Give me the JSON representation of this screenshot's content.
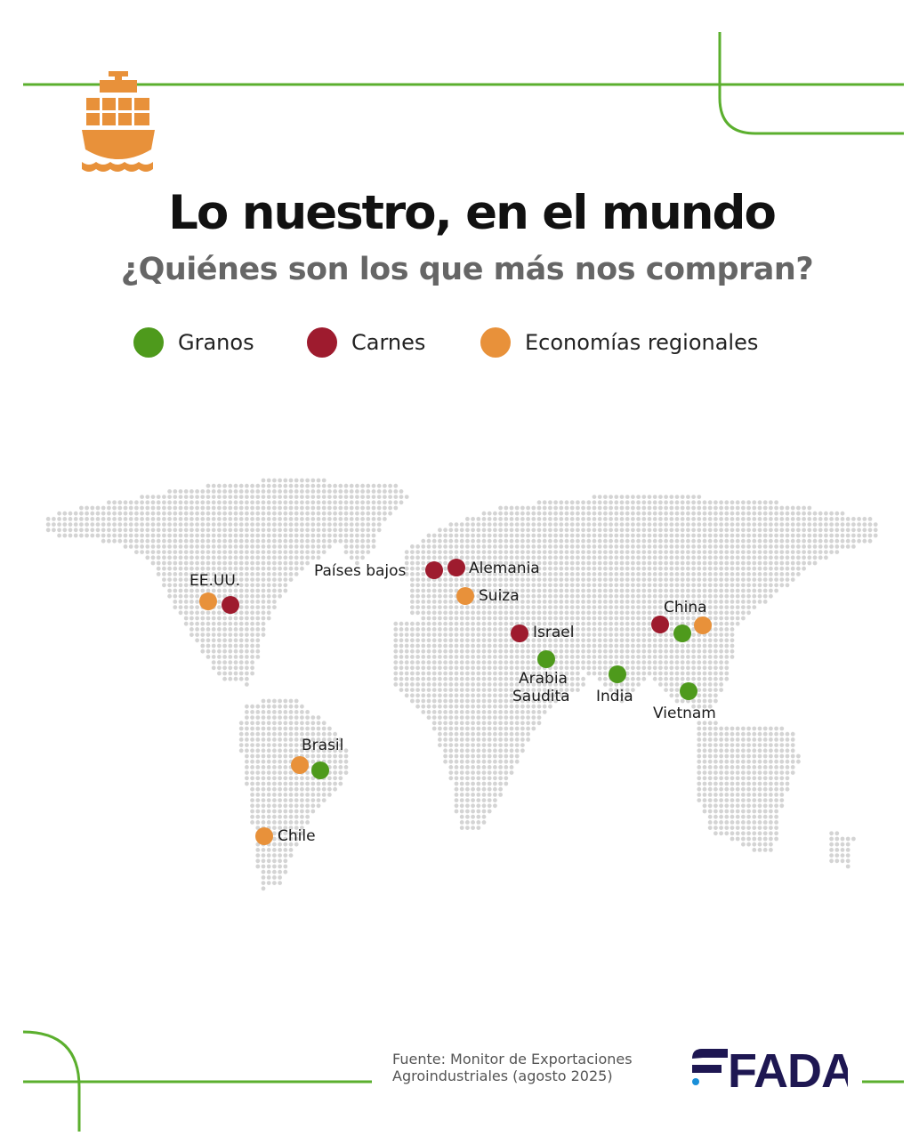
{
  "header": {
    "title": "Lo nuestro, en el mundo",
    "subtitle": "¿Quiénes son los que más nos compran?",
    "icon": "cargo-ship-icon"
  },
  "legend": [
    {
      "label": "Granos",
      "color": "#4E9A1C"
    },
    {
      "label": "Carnes",
      "color": "#9E1B2E"
    },
    {
      "label": "Economías regionales",
      "color": "#E8913A"
    }
  ],
  "map": {
    "base": "dotted-world-map",
    "countries": [
      {
        "name": "EE.UU.",
        "categories": [
          "Economías regionales",
          "Carnes"
        ]
      },
      {
        "name": "Países bajos",
        "categories": [
          "Carnes"
        ]
      },
      {
        "name": "Alemania",
        "categories": [
          "Carnes"
        ]
      },
      {
        "name": "Suiza",
        "categories": [
          "Economías regionales"
        ]
      },
      {
        "name": "Israel",
        "categories": [
          "Carnes"
        ]
      },
      {
        "name": "Arabia Saudita",
        "categories": [
          "Granos"
        ]
      },
      {
        "name": "India",
        "categories": [
          "Granos"
        ]
      },
      {
        "name": "China",
        "categories": [
          "Carnes",
          "Granos",
          "Economías regionales"
        ]
      },
      {
        "name": "Vietnam",
        "categories": [
          "Granos"
        ]
      },
      {
        "name": "Brasil",
        "categories": [
          "Economías regionales",
          "Granos"
        ]
      },
      {
        "name": "Chile",
        "categories": [
          "Economías regionales"
        ]
      }
    ],
    "labels": {
      "usa": "EE.UU.",
      "netherlands": "Países bajos",
      "germany": "Alemania",
      "switzerland": "Suiza",
      "israel": "Israel",
      "saudi_1": "Arabia",
      "saudi_2": "Saudita",
      "india": "India",
      "china": "China",
      "vietnam": "Vietnam",
      "brazil": "Brasil",
      "chile": "Chile"
    }
  },
  "footer": {
    "source_line1": "Fuente: Monitor de Exportaciones",
    "source_line2": "Agroindustriales (agosto 2025)",
    "logo_text": "FADA"
  },
  "colors": {
    "accent_line": "#5BAF2E",
    "ship": "#E8913A",
    "map_dots": "#D4D4D4",
    "logo": "#1E1752",
    "logo_accent": "#1A8FD8"
  }
}
